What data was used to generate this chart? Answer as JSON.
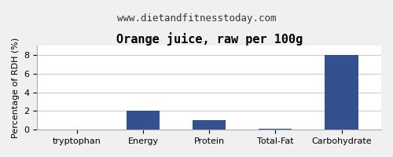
{
  "title": "Orange juice, raw per 100g",
  "subtitle": "www.dietandfitnesstoday.com",
  "categories": [
    "tryptophan",
    "Energy",
    "Protein",
    "Total-Fat",
    "Carbohydrate"
  ],
  "values": [
    0.0,
    2.0,
    1.0,
    0.1,
    8.0
  ],
  "bar_color": "#33518e",
  "ylabel": "Percentage of RDH (%)",
  "ylim": [
    0,
    9
  ],
  "yticks": [
    0,
    2,
    4,
    6,
    8
  ],
  "background_color": "#f0f0f0",
  "plot_bg_color": "#ffffff",
  "title_fontsize": 11,
  "subtitle_fontsize": 9,
  "tick_fontsize": 8,
  "ylabel_fontsize": 8,
  "border_color": "#aaaaaa"
}
